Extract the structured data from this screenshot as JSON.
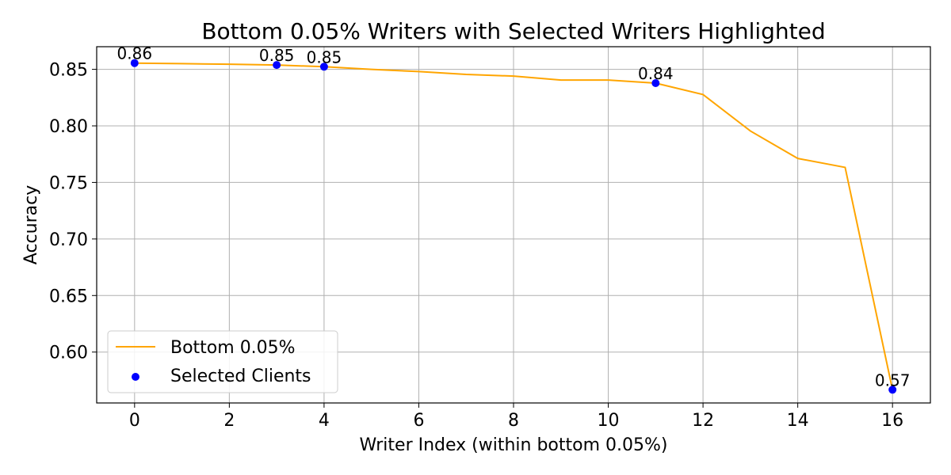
{
  "chart_data": {
    "type": "line",
    "title": "Bottom 0.05% Writers with Selected Writers Highlighted",
    "xlabel": "Writer Index (within bottom 0.05%)",
    "ylabel": "Accuracy",
    "xlim": [
      -0.8,
      16.8
    ],
    "ylim": [
      0.555,
      0.87
    ],
    "xticks": [
      0,
      2,
      4,
      6,
      8,
      10,
      12,
      14,
      16
    ],
    "xtick_labels": [
      "0",
      "2",
      "4",
      "6",
      "8",
      "10",
      "12",
      "14",
      "16"
    ],
    "yticks": [
      0.6,
      0.65,
      0.7,
      0.75,
      0.8,
      0.85
    ],
    "ytick_labels": [
      "0.60",
      "0.65",
      "0.70",
      "0.75",
      "0.80",
      "0.85"
    ],
    "grid": true,
    "legend_position": "lower-left",
    "series": [
      {
        "name": "Bottom 0.05%",
        "kind": "line",
        "color": "#ffa500",
        "x": [
          0,
          1,
          2,
          3,
          4,
          5,
          6,
          7,
          8,
          9,
          10,
          11,
          12,
          13,
          14,
          15,
          16
        ],
        "y": [
          0.8555,
          0.855,
          0.8545,
          0.8538,
          0.8523,
          0.85,
          0.848,
          0.8455,
          0.844,
          0.8405,
          0.8405,
          0.8378,
          0.8277,
          0.7955,
          0.7712,
          0.7633,
          0.5667
        ]
      },
      {
        "name": "Selected Clients",
        "kind": "scatter",
        "color": "#0000ff",
        "x": [
          0,
          3,
          4,
          11,
          16
        ],
        "y": [
          0.8555,
          0.8538,
          0.8523,
          0.8378,
          0.5667
        ],
        "labels": [
          "0.86",
          "0.85",
          "0.85",
          "0.84",
          "0.57"
        ]
      }
    ]
  }
}
